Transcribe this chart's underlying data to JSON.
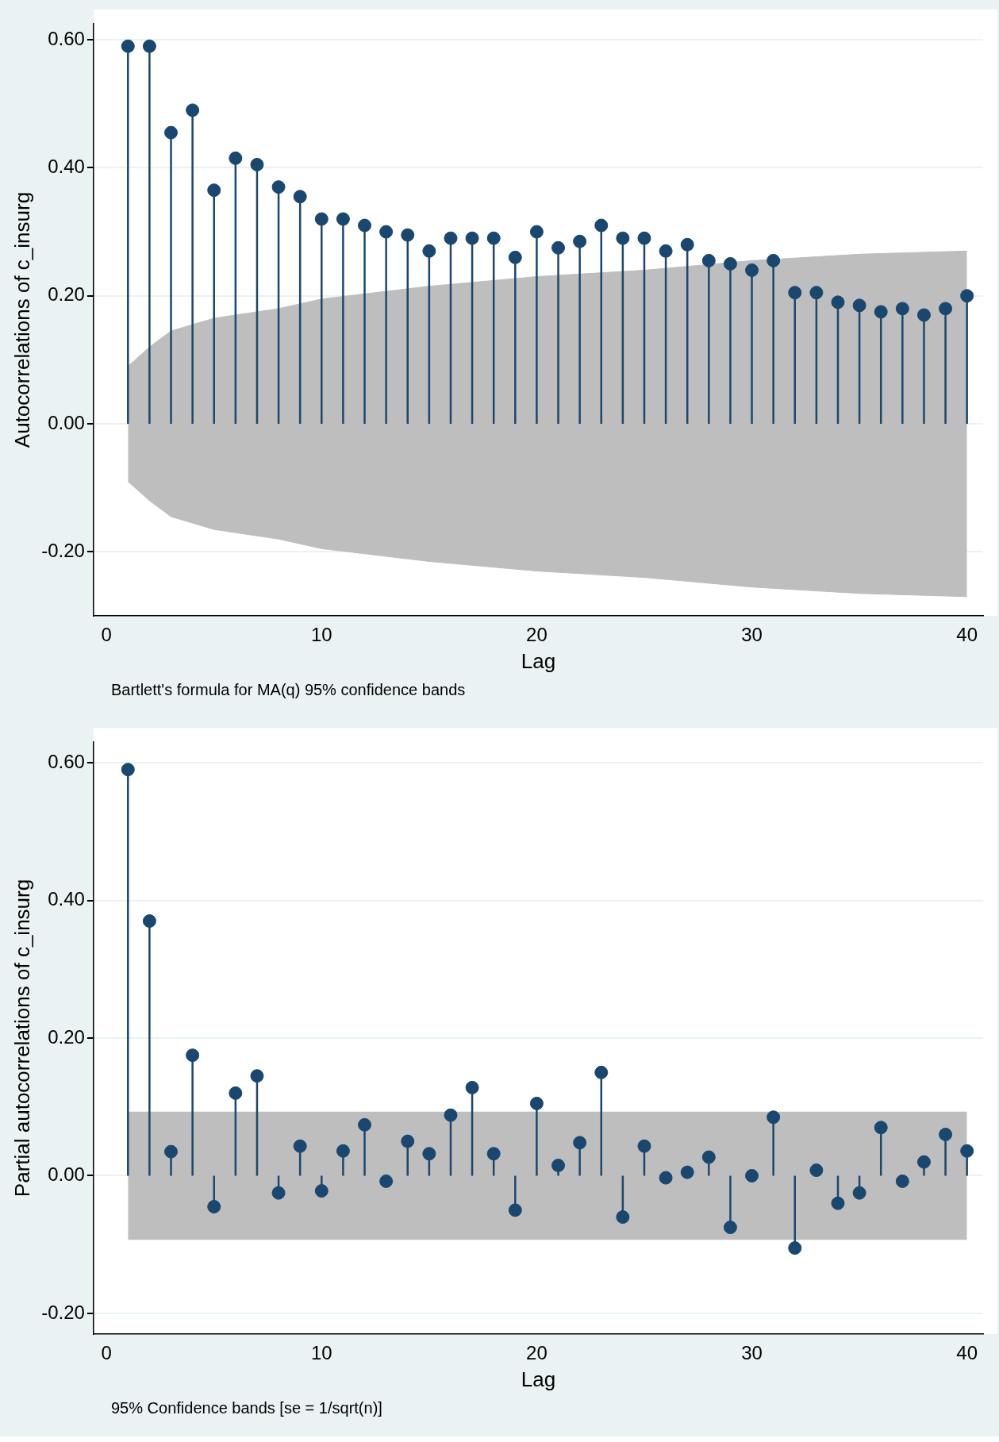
{
  "chart_data": [
    {
      "type": "lollipop",
      "ylabel": "Autocorrelations of c_insurg",
      "xlabel": "Lag",
      "marker": "circle",
      "grid": "y",
      "legend": false,
      "xlim": [
        -0.6,
        40.75
      ],
      "xticks": [
        0,
        10,
        20,
        30,
        40
      ],
      "ylim": [
        -0.3,
        0.625
      ],
      "yticks": [
        {
          "value": -0.2,
          "label": "-0.20"
        },
        {
          "value": 0,
          "label": "0.00"
        },
        {
          "value": 0.2,
          "label": "0.20"
        },
        {
          "value": 0.4,
          "label": "0.40"
        },
        {
          "value": 0.6,
          "label": "0.60"
        }
      ],
      "x": [
        1,
        2,
        3,
        4,
        5,
        6,
        7,
        8,
        9,
        10,
        11,
        12,
        13,
        14,
        15,
        16,
        17,
        18,
        19,
        20,
        21,
        22,
        23,
        24,
        25,
        26,
        27,
        28,
        29,
        30,
        31,
        32,
        33,
        34,
        35,
        36,
        37,
        38,
        39,
        40
      ],
      "series": [
        {
          "color": "#1a476f",
          "values": [
            0.59,
            0.59,
            0.455,
            0.49,
            0.365,
            0.415,
            0.405,
            0.37,
            0.355,
            0.32,
            0.32,
            0.31,
            0.3,
            0.295,
            0.27,
            0.29,
            0.29,
            0.29,
            0.26,
            0.3,
            0.275,
            0.285,
            0.31,
            0.29,
            0.29,
            0.27,
            0.28,
            0.255,
            0.25,
            0.24,
            0.255,
            0.205,
            0.205,
            0.19,
            0.185,
            0.175,
            0.18,
            0.17,
            0.18,
            0.2
          ]
        },
        {
          "type": "area",
          "marker": "none",
          "color": "#bebebe",
          "x": [
            1,
            2,
            3,
            4,
            5,
            6,
            8,
            10,
            15,
            20,
            25,
            30,
            35,
            40
          ],
          "values": [
            0.09,
            0.12,
            0.145,
            0.155,
            0.165,
            0.17,
            0.18,
            0.195,
            0.215,
            0.23,
            0.24,
            0.255,
            0.265,
            0.27
          ]
        },
        {
          "type": "area",
          "marker": "none",
          "color": "#bebebe",
          "x": [
            1,
            2,
            3,
            4,
            5,
            6,
            8,
            10,
            15,
            20,
            25,
            30,
            35,
            40
          ],
          "values": [
            -0.09,
            -0.12,
            -0.145,
            -0.155,
            -0.165,
            -0.17,
            -0.18,
            -0.195,
            -0.215,
            -0.23,
            -0.24,
            -0.255,
            -0.265,
            -0.27
          ]
        }
      ],
      "annotations": [
        "Bartlett's formula for MA(q) 95% confidence bands"
      ]
    },
    {
      "type": "lollipop",
      "ylabel": "Partial autocorrelations of c_insurg",
      "xlabel": "Lag",
      "marker": "circle",
      "grid": "y",
      "legend": false,
      "xlim": [
        -0.6,
        40.75
      ],
      "xticks": [
        0,
        10,
        20,
        30,
        40
      ],
      "ylim": [
        -0.23,
        0.63
      ],
      "yticks": [
        {
          "value": -0.2,
          "label": "-0.20"
        },
        {
          "value": 0,
          "label": "0.00"
        },
        {
          "value": 0.2,
          "label": "0.20"
        },
        {
          "value": 0.4,
          "label": "0.40"
        },
        {
          "value": 0.6,
          "label": "0.60"
        }
      ],
      "x": [
        1,
        2,
        3,
        4,
        5,
        6,
        7,
        8,
        9,
        10,
        11,
        12,
        13,
        14,
        15,
        16,
        17,
        18,
        19,
        20,
        21,
        22,
        23,
        24,
        25,
        26,
        27,
        28,
        29,
        30,
        31,
        32,
        33,
        34,
        35,
        36,
        37,
        38,
        39,
        40
      ],
      "series": [
        {
          "color": "#1a476f",
          "values": [
            0.59,
            0.37,
            0.035,
            0.175,
            -0.045,
            0.12,
            0.145,
            -0.025,
            0.043,
            -0.022,
            0.036,
            0.074,
            -0.008,
            0.05,
            0.032,
            0.088,
            0.128,
            0.032,
            -0.05,
            0.105,
            0.015,
            0.048,
            0.15,
            -0.06,
            0.043,
            -0.003,
            0.005,
            0.027,
            -0.075,
            0,
            0.085,
            -0.105,
            0.008,
            -0.04,
            -0.025,
            0.07,
            -0.008,
            0.02,
            0.06,
            0.036
          ]
        }
      ],
      "bands": [
        {
          "axis": "y",
          "from": -0.093,
          "to": 0.093,
          "color": "#bebebe"
        }
      ],
      "annotations": [
        "95% Confidence bands [se = 1/sqrt(n)]"
      ]
    }
  ]
}
